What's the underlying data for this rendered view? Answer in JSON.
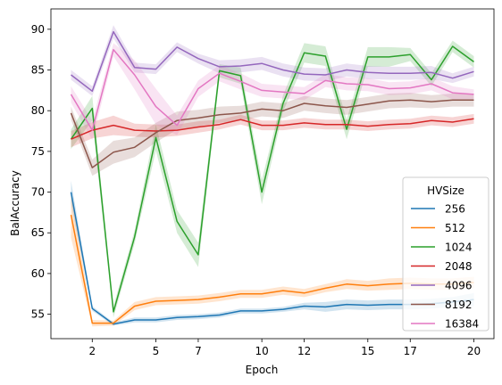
{
  "chart_data": {
    "type": "line",
    "xlabel": "Epoch",
    "ylabel": "BalAccuracy",
    "xlim": [
      0.05,
      20.95
    ],
    "ylim": [
      52.0,
      92.5
    ],
    "x_ticks": [
      {
        "value": 2,
        "label": "2"
      },
      {
        "value": 5,
        "label": "5"
      },
      {
        "value": 7,
        "label": "7"
      },
      {
        "value": 10,
        "label": "10"
      },
      {
        "value": 12,
        "label": "12"
      },
      {
        "value": 15,
        "label": "15"
      },
      {
        "value": 17,
        "label": "17"
      },
      {
        "value": 20,
        "label": "20"
      }
    ],
    "y_ticks": [
      55,
      60,
      65,
      70,
      75,
      80,
      85,
      90
    ],
    "x": [
      1,
      2,
      3,
      4,
      5,
      6,
      7,
      8,
      9,
      10,
      11,
      12,
      13,
      14,
      15,
      16,
      17,
      18,
      19,
      20
    ],
    "grid": false,
    "legend": {
      "title": "HVSize",
      "position": "lower right"
    },
    "series": [
      {
        "name": "256",
        "color": "#1f77b4",
        "values": [
          70.0,
          55.7,
          53.8,
          54.3,
          54.3,
          54.6,
          54.7,
          54.9,
          55.4,
          55.4,
          55.6,
          56.0,
          55.9,
          56.2,
          56.1,
          56.2,
          56.2,
          56.3,
          56.5,
          56.8
        ],
        "band": [
          1.4,
          0.3,
          0.2,
          0.3,
          0.3,
          0.3,
          0.3,
          0.3,
          0.3,
          0.3,
          0.3,
          0.4,
          0.6,
          0.6,
          0.6,
          0.6,
          0.6,
          0.6,
          0.6,
          0.8
        ]
      },
      {
        "name": "512",
        "color": "#ff7f0e",
        "values": [
          67.2,
          53.9,
          53.9,
          56.0,
          56.6,
          56.7,
          56.8,
          57.1,
          57.5,
          57.5,
          57.9,
          57.6,
          58.2,
          58.7,
          58.5,
          58.7,
          58.8,
          58.7,
          58.7,
          58.9
        ],
        "band": [
          2.8,
          0.4,
          0.3,
          0.5,
          0.5,
          0.5,
          0.5,
          0.5,
          0.5,
          0.5,
          0.5,
          0.5,
          0.5,
          0.6,
          0.6,
          0.7,
          0.7,
          0.7,
          0.7,
          0.7
        ]
      },
      {
        "name": "1024",
        "color": "#2ca02c",
        "values": [
          76.5,
          80.3,
          55.3,
          64.5,
          76.7,
          66.4,
          62.3,
          84.9,
          84.3,
          70.0,
          80.9,
          87.1,
          86.7,
          77.7,
          86.6,
          86.6,
          86.9,
          83.8,
          87.9,
          86.0
        ],
        "band": [
          1.2,
          1.5,
          0.7,
          0.8,
          1.6,
          1.4,
          1.5,
          0.8,
          1.0,
          1.5,
          1.0,
          1.2,
          1.2,
          1.2,
          1.2,
          1.2,
          0.8,
          0.8,
          0.7,
          0.7
        ]
      },
      {
        "name": "2048",
        "color": "#d62728",
        "values": [
          76.5,
          77.6,
          78.2,
          77.6,
          77.5,
          77.6,
          78.0,
          78.3,
          78.9,
          78.2,
          78.2,
          78.5,
          78.3,
          78.3,
          78.1,
          78.3,
          78.4,
          78.8,
          78.6,
          79.0
        ],
        "band": [
          1.0,
          1.0,
          1.2,
          0.8,
          0.8,
          0.7,
          0.7,
          0.6,
          0.6,
          0.6,
          0.6,
          0.6,
          0.6,
          0.6,
          0.6,
          0.6,
          0.6,
          0.6,
          0.6,
          0.6
        ]
      },
      {
        "name": "4096",
        "color": "#9467bd",
        "values": [
          84.4,
          82.4,
          89.7,
          85.3,
          85.1,
          87.8,
          86.4,
          85.4,
          85.5,
          85.8,
          85.0,
          84.5,
          84.4,
          85.0,
          84.7,
          84.6,
          84.6,
          84.7,
          84.0,
          84.8
        ],
        "band": [
          0.6,
          0.6,
          0.8,
          0.6,
          0.6,
          0.6,
          0.6,
          0.8,
          0.8,
          0.8,
          0.8,
          0.8,
          0.8,
          0.8,
          0.8,
          0.8,
          0.8,
          0.8,
          0.6,
          0.6
        ]
      },
      {
        "name": "8192",
        "color": "#8c564b",
        "values": [
          79.7,
          73.0,
          74.9,
          75.5,
          77.3,
          78.8,
          79.1,
          79.5,
          79.7,
          80.2,
          80.0,
          80.9,
          80.6,
          80.4,
          80.8,
          81.2,
          81.3,
          81.1,
          81.3,
          81.3
        ],
        "band": [
          0.8,
          1.0,
          1.4,
          1.2,
          1.2,
          1.1,
          1.0,
          1.0,
          0.9,
          0.9,
          0.9,
          0.9,
          0.9,
          0.9,
          0.9,
          0.9,
          0.9,
          0.8,
          0.8,
          0.8
        ]
      },
      {
        "name": "16384",
        "color": "#e377c2",
        "values": [
          82.0,
          77.6,
          87.5,
          84.4,
          80.5,
          78.2,
          82.7,
          84.6,
          83.6,
          82.5,
          82.3,
          82.1,
          83.7,
          83.3,
          83.2,
          82.7,
          82.8,
          83.3,
          82.2,
          82.0
        ],
        "band": [
          1.0,
          1.2,
          0.8,
          1.8,
          2.2,
          1.2,
          1.0,
          1.0,
          1.0,
          0.8,
          0.8,
          0.8,
          0.8,
          0.8,
          0.8,
          0.8,
          0.8,
          0.8,
          0.8,
          0.6
        ]
      }
    ]
  }
}
